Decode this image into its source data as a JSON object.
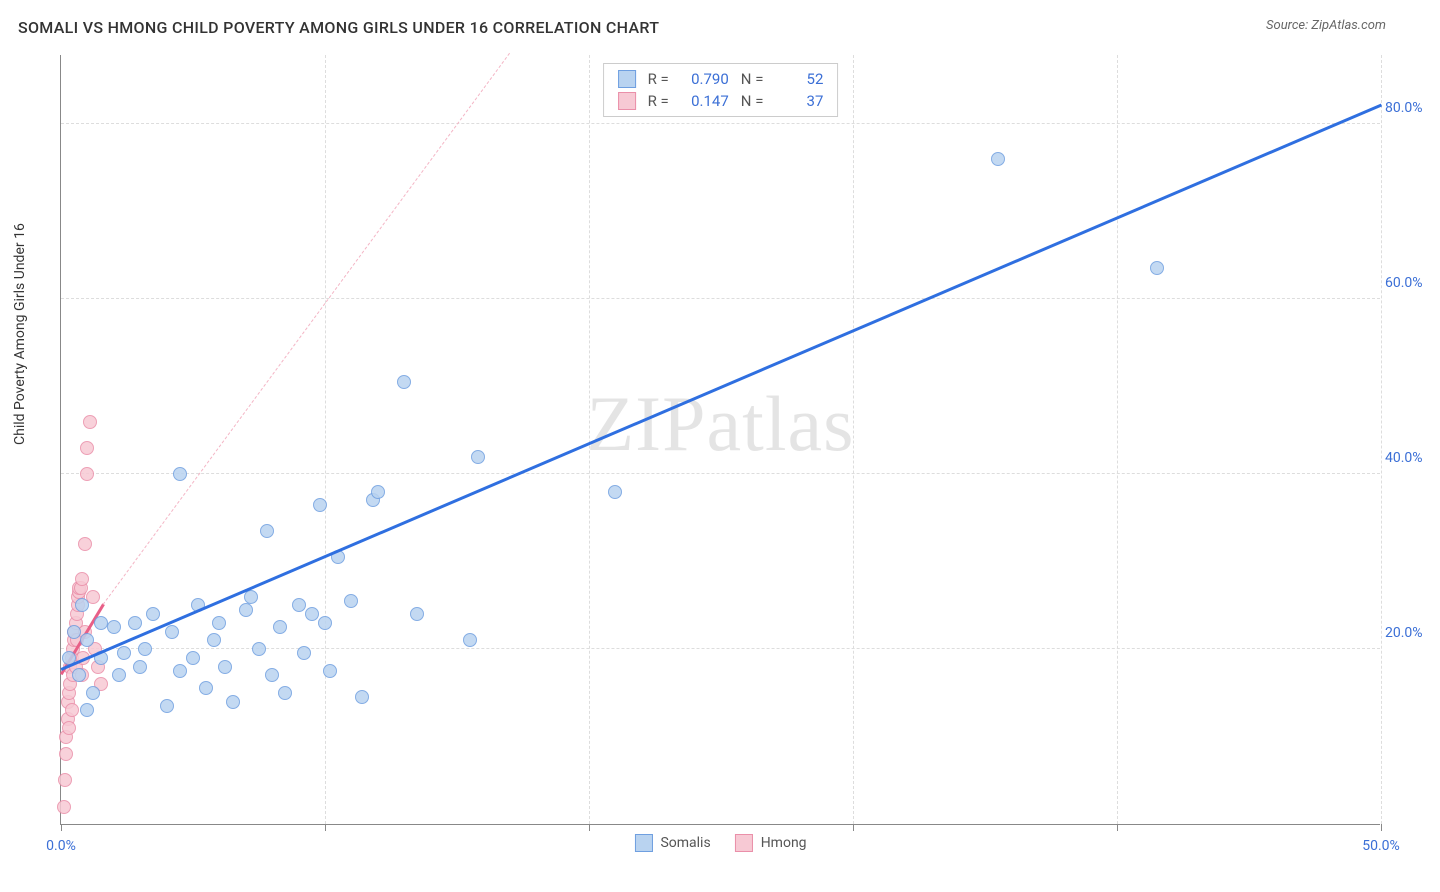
{
  "title": "SOMALI VS HMONG CHILD POVERTY AMONG GIRLS UNDER 16 CORRELATION CHART",
  "source": "Source: ZipAtlas.com",
  "y_axis_label": "Child Poverty Among Girls Under 16",
  "watermark": "ZIPatlas",
  "chart": {
    "type": "scatter",
    "xlim": [
      0,
      50
    ],
    "ylim": [
      0,
      88
    ],
    "x_ticks": [
      0,
      10,
      20,
      30,
      40,
      50
    ],
    "x_tick_labels": [
      "0.0%",
      "",
      "",
      "",
      "",
      "50.0%"
    ],
    "y_ticks": [
      20,
      40,
      60,
      80
    ],
    "y_tick_labels": [
      "20.0%",
      "40.0%",
      "60.0%",
      "80.0%"
    ],
    "background_color": "#ffffff",
    "grid_color": "#dddddd",
    "axis_color": "#888888",
    "tick_label_color": "#3b6fd6"
  },
  "series": {
    "somalis": {
      "label": "Somalis",
      "marker_fill": "#b9d3f0",
      "marker_stroke": "#6f9fe0",
      "marker_size": 14,
      "trend_color": "#2f6fe0",
      "trend_width": 2.5,
      "trend_start": [
        0,
        17.5
      ],
      "trend_end": [
        50,
        82
      ],
      "dash_extend": null,
      "R": "0.790",
      "N": "52",
      "points": [
        [
          0.3,
          19
        ],
        [
          0.5,
          22
        ],
        [
          0.7,
          17
        ],
        [
          0.8,
          25
        ],
        [
          1.0,
          21
        ],
        [
          1.2,
          15
        ],
        [
          1.5,
          23
        ],
        [
          1.5,
          19
        ],
        [
          2.0,
          22.5
        ],
        [
          2.2,
          17
        ],
        [
          2.4,
          19.5
        ],
        [
          2.8,
          23
        ],
        [
          3.0,
          18
        ],
        [
          3.2,
          20
        ],
        [
          3.5,
          24
        ],
        [
          4.0,
          13.5
        ],
        [
          4.2,
          22
        ],
        [
          4.5,
          17.5
        ],
        [
          4.5,
          40
        ],
        [
          5.0,
          19
        ],
        [
          5.2,
          25
        ],
        [
          5.5,
          15.5
        ],
        [
          5.8,
          21
        ],
        [
          6.0,
          23
        ],
        [
          6.2,
          18
        ],
        [
          6.5,
          14
        ],
        [
          7.0,
          24.5
        ],
        [
          7.2,
          26
        ],
        [
          7.5,
          20
        ],
        [
          7.8,
          33.5
        ],
        [
          8.0,
          17
        ],
        [
          8.3,
          22.5
        ],
        [
          8.5,
          15
        ],
        [
          9.0,
          25
        ],
        [
          9.2,
          19.5
        ],
        [
          9.5,
          24
        ],
        [
          9.8,
          36.5
        ],
        [
          10.0,
          23
        ],
        [
          10.2,
          17.5
        ],
        [
          10.5,
          30.5
        ],
        [
          11.0,
          25.5
        ],
        [
          11.4,
          14.5
        ],
        [
          11.8,
          37
        ],
        [
          12.0,
          38
        ],
        [
          13.0,
          50.5
        ],
        [
          13.5,
          24
        ],
        [
          15.5,
          21
        ],
        [
          15.8,
          42
        ],
        [
          21.0,
          38
        ],
        [
          35.5,
          76
        ],
        [
          41.5,
          63.5
        ],
        [
          1.0,
          13
        ]
      ]
    },
    "hmong": {
      "label": "Hmong",
      "marker_fill": "#f7c9d4",
      "marker_stroke": "#ea8fa9",
      "marker_size": 14,
      "trend_color": "#e85f87",
      "trend_width": 2.5,
      "trend_start": [
        0,
        17
      ],
      "trend_end": [
        1.6,
        25
      ],
      "dash_extend": [
        17,
        100
      ],
      "dash_color": "#f4b5c5",
      "R": "0.147",
      "N": "37",
      "points": [
        [
          0.1,
          2
        ],
        [
          0.15,
          5
        ],
        [
          0.2,
          8
        ],
        [
          0.2,
          10
        ],
        [
          0.25,
          12
        ],
        [
          0.25,
          14
        ],
        [
          0.3,
          11
        ],
        [
          0.3,
          15
        ],
        [
          0.35,
          16
        ],
        [
          0.35,
          18
        ],
        [
          0.4,
          13
        ],
        [
          0.4,
          19
        ],
        [
          0.45,
          17
        ],
        [
          0.45,
          20
        ],
        [
          0.5,
          21
        ],
        [
          0.5,
          22
        ],
        [
          0.55,
          18
        ],
        [
          0.55,
          23
        ],
        [
          0.6,
          24
        ],
        [
          0.6,
          21
        ],
        [
          0.65,
          25
        ],
        [
          0.65,
          26
        ],
        [
          0.7,
          26.5
        ],
        [
          0.7,
          27
        ],
        [
          0.75,
          27
        ],
        [
          0.8,
          28
        ],
        [
          0.8,
          17
        ],
        [
          0.85,
          19
        ],
        [
          0.9,
          22
        ],
        [
          0.9,
          32
        ],
        [
          1.0,
          40
        ],
        [
          1.0,
          43
        ],
        [
          1.1,
          46
        ],
        [
          1.2,
          26
        ],
        [
          1.3,
          20
        ],
        [
          1.4,
          18
        ],
        [
          1.5,
          16
        ]
      ]
    }
  },
  "legend_stats": {
    "rows": [
      {
        "swatch_fill": "#b9d3f0",
        "swatch_stroke": "#6f9fe0",
        "R_label": "R =",
        "R": "0.790",
        "N_label": "N =",
        "N": "52"
      },
      {
        "swatch_fill": "#f7c9d4",
        "swatch_stroke": "#ea8fa9",
        "R_label": "R =",
        "R": "0.147",
        "N_label": "N =",
        "N": "37"
      }
    ]
  },
  "bottom_legend": [
    {
      "swatch_fill": "#b9d3f0",
      "swatch_stroke": "#6f9fe0",
      "label": "Somalis"
    },
    {
      "swatch_fill": "#f7c9d4",
      "swatch_stroke": "#ea8fa9",
      "label": "Hmong"
    }
  ]
}
